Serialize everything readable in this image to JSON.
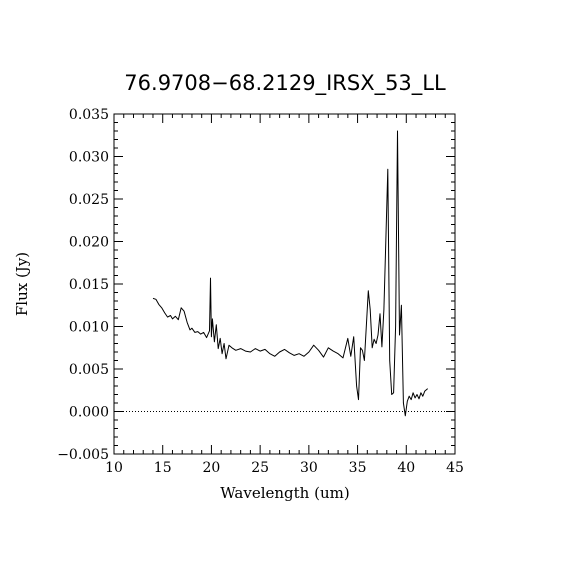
{
  "chart_data": {
    "type": "line",
    "title": "76.9708−68.2129_IRSX_53_LL",
    "xlabel": "Wavelength (um)",
    "ylabel": "Flux (Jy)",
    "xlim": [
      10,
      45
    ],
    "ylim": [
      -0.005,
      0.035
    ],
    "xticks": [
      10,
      15,
      20,
      25,
      30,
      35,
      40,
      45
    ],
    "xtick_labels": [
      "10",
      "15",
      "20",
      "25",
      "30",
      "35",
      "40",
      "45"
    ],
    "yticks": [
      -0.005,
      0.0,
      0.005,
      0.01,
      0.015,
      0.02,
      0.025,
      0.03,
      0.035
    ],
    "ytick_labels": [
      "−0.005",
      "0.000",
      "0.005",
      "0.010",
      "0.015",
      "0.020",
      "0.025",
      "0.030",
      "0.035"
    ],
    "reference_line": {
      "y": 0.0,
      "style": "dotted"
    },
    "grid": false,
    "series": [
      {
        "x": [
          14.0,
          14.3,
          14.6,
          14.9,
          15.2,
          15.5,
          15.8,
          16.0,
          16.3,
          16.6,
          16.9,
          17.2,
          17.5,
          17.8,
          18.0,
          18.3,
          18.6,
          18.9,
          19.2,
          19.5,
          19.8,
          19.9,
          20.0,
          20.1,
          20.3,
          20.5,
          20.7,
          20.9,
          21.1,
          21.3,
          21.5,
          21.8,
          22.1,
          22.5,
          23.0,
          23.5,
          24.0,
          24.5,
          25.0,
          25.5,
          26.0,
          26.5,
          27.0,
          27.5,
          28.0,
          28.5,
          29.0,
          29.5,
          30.0,
          30.5,
          31.0,
          31.5,
          32.0,
          32.5,
          33.0,
          33.5,
          34.0,
          34.3,
          34.6,
          34.9,
          35.1,
          35.3,
          35.5,
          35.7,
          35.9,
          36.1,
          36.3,
          36.5,
          36.7,
          36.9,
          37.1,
          37.3,
          37.5,
          37.7,
          37.9,
          38.1,
          38.3,
          38.5,
          38.7,
          38.9,
          39.1,
          39.3,
          39.5,
          39.7,
          39.9,
          40.1,
          40.3,
          40.5,
          40.7,
          40.9,
          41.1,
          41.3,
          41.5,
          41.7,
          41.9,
          42.2
        ],
        "y": [
          0.0133,
          0.0132,
          0.0126,
          0.0122,
          0.0116,
          0.0111,
          0.0113,
          0.0109,
          0.0112,
          0.0108,
          0.0122,
          0.0118,
          0.0105,
          0.0096,
          0.0098,
          0.0093,
          0.0094,
          0.0091,
          0.0093,
          0.0087,
          0.0095,
          0.0157,
          0.0088,
          0.0109,
          0.0082,
          0.0102,
          0.0074,
          0.0086,
          0.0068,
          0.008,
          0.0062,
          0.0078,
          0.0075,
          0.0072,
          0.0074,
          0.0071,
          0.007,
          0.0074,
          0.0071,
          0.0073,
          0.0068,
          0.0065,
          0.007,
          0.0073,
          0.0069,
          0.0066,
          0.0068,
          0.0065,
          0.007,
          0.0078,
          0.0072,
          0.0064,
          0.0075,
          0.0071,
          0.0068,
          0.0063,
          0.0086,
          0.0065,
          0.0088,
          0.003,
          0.0014,
          0.0075,
          0.0072,
          0.006,
          0.01,
          0.0142,
          0.012,
          0.0075,
          0.0085,
          0.008,
          0.009,
          0.0115,
          0.0076,
          0.012,
          0.02,
          0.0285,
          0.006,
          0.002,
          0.0022,
          0.01,
          0.033,
          0.009,
          0.0125,
          0.001,
          -0.0005,
          0.0012,
          0.0018,
          0.0014,
          0.0022,
          0.0016,
          0.002,
          0.0015,
          0.0022,
          0.0018,
          0.0024,
          0.0027
        ]
      }
    ]
  }
}
